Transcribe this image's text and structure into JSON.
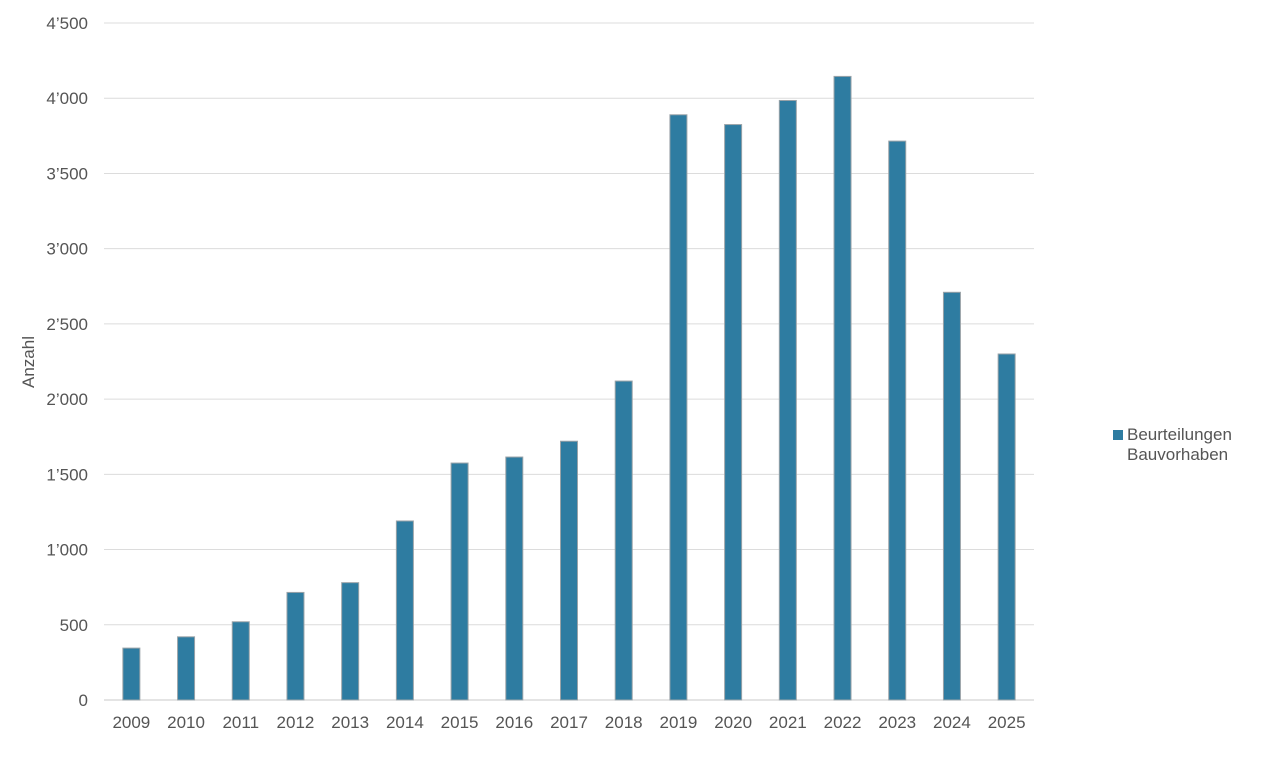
{
  "chart_data": {
    "type": "bar",
    "categories": [
      "2009",
      "2010",
      "2011",
      "2012",
      "2013",
      "2014",
      "2015",
      "2016",
      "2017",
      "2018",
      "2019",
      "2020",
      "2021",
      "2022",
      "2023",
      "2024",
      "2025"
    ],
    "series": [
      {
        "name": "Beurteilungen Bauvorhaben",
        "color": "#2e7ca1",
        "values": [
          345,
          420,
          520,
          715,
          780,
          1190,
          1575,
          1615,
          1720,
          2120,
          3890,
          3825,
          3985,
          4145,
          3715,
          2710,
          2300
        ]
      }
    ],
    "title": "",
    "xlabel": "",
    "ylabel": "Anzahl",
    "ylim": [
      0,
      4500
    ],
    "yticks": [
      0,
      500,
      1000,
      1500,
      2000,
      2500,
      3000,
      3500,
      4000,
      4500
    ],
    "ytick_labels": [
      "0",
      "500",
      "1’000",
      "1’500",
      "2’000",
      "2’500",
      "3’000",
      "3’500",
      "4’000",
      "4’500"
    ],
    "grid": true,
    "legend_position": "right"
  }
}
